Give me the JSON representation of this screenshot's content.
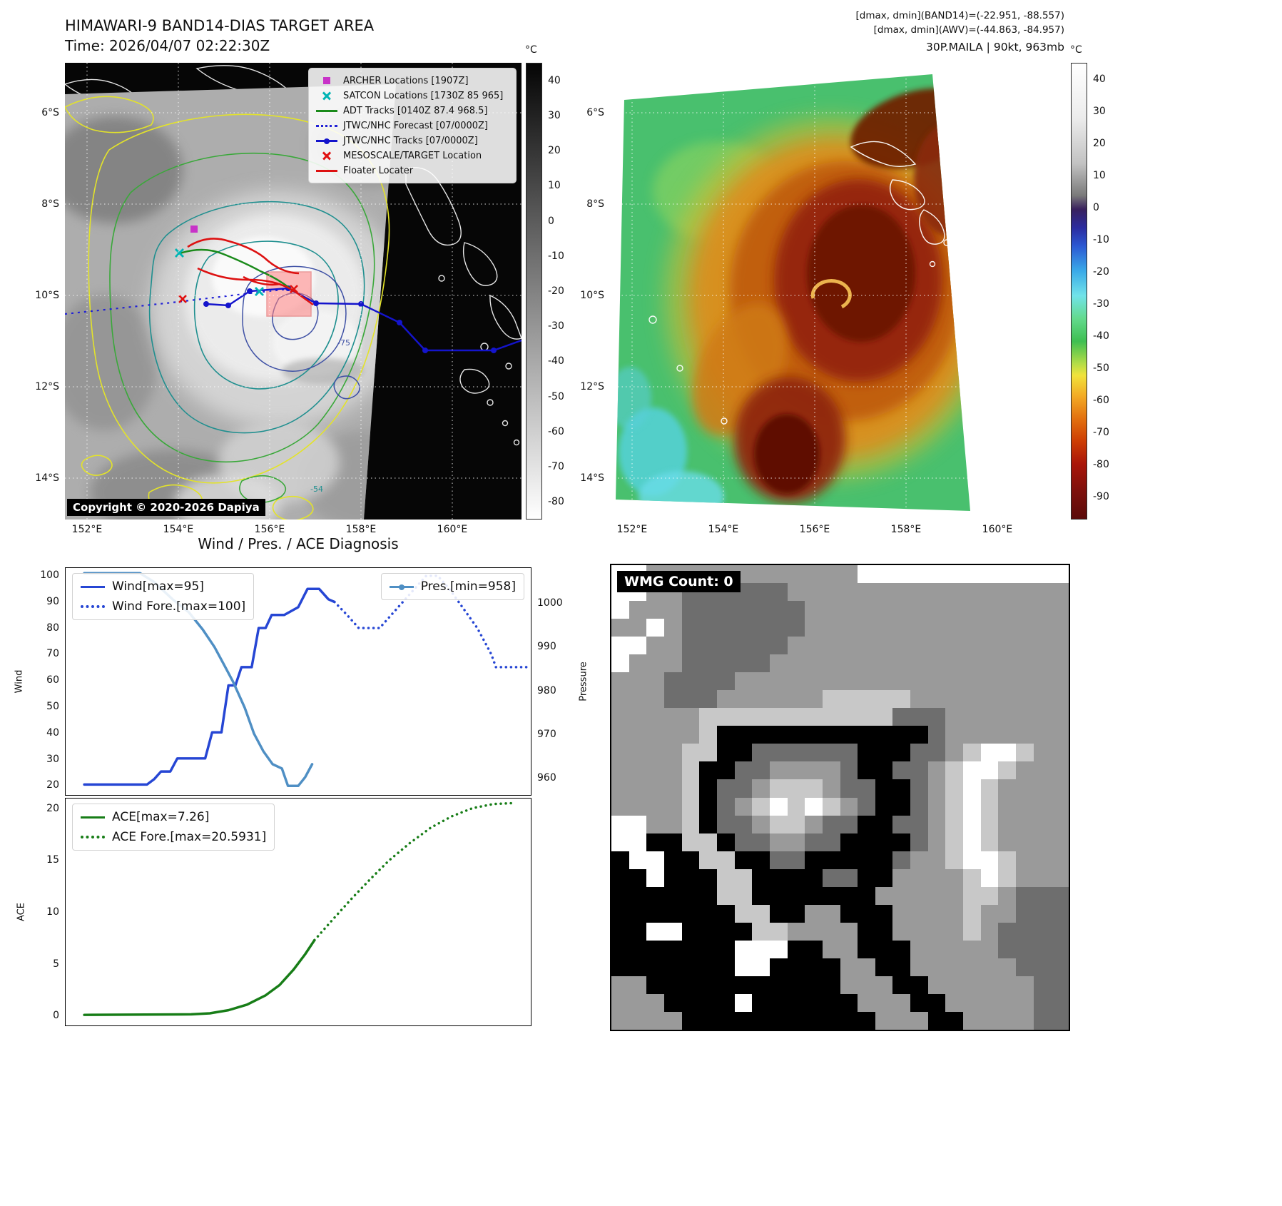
{
  "maps": {
    "band14": {
      "title": "HIMAWARI-9 BAND14-DIAS TARGET AREA",
      "subtitle": "Time: 2026/04/07 02:22:30Z",
      "x_ticks": [
        "152°E",
        "154°E",
        "156°E",
        "158°E",
        "160°E"
      ],
      "y_ticks": [
        "6°S",
        "8°S",
        "10°S",
        "12°S",
        "14°S"
      ],
      "colorbar": {
        "unit": "°C",
        "ticks": [
          40,
          30,
          20,
          10,
          0,
          -10,
          -20,
          -30,
          -40,
          -50,
          -60,
          -70,
          -80
        ]
      },
      "legend": [
        {
          "label": "ARCHER Locations [1907Z]",
          "marker": "magenta-square",
          "color": "#c832c8"
        },
        {
          "label": "SATCON Locations [1730Z 85 965]",
          "marker": "cyan-x",
          "color": "#00b4b4"
        },
        {
          "label": "ADT Tracks [0140Z 87.4 968.5]",
          "marker": "green-line",
          "color": "#1a8a1a"
        },
        {
          "label": "JTWC/NHC Forecast [07/0000Z]",
          "marker": "blue-dotted-line",
          "color": "#2121d6"
        },
        {
          "label": "JTWC/NHC Tracks [07/0000Z]",
          "marker": "blue-line-with-dot",
          "color": "#1414cc"
        },
        {
          "label": "MESOSCALE/TARGET Location",
          "marker": "red-x",
          "color": "#e01010"
        },
        {
          "label": "Floater Locater",
          "marker": "red-line",
          "color": "#dd1111"
        }
      ],
      "contour_labels": [
        "-75",
        "-54"
      ],
      "copyright": "Copyright © 2020-2026 Dapiya"
    },
    "awv": {
      "header_lines": [
        "[dmax, dmin](BAND14)=(-22.951, -88.557)",
        "[dmax, dmin](AWV)=(-44.863, -84.957)",
        "30P.MAILA | 90kt, 963mb"
      ],
      "x_ticks": [
        "152°E",
        "154°E",
        "156°E",
        "158°E",
        "160°E"
      ],
      "y_ticks": [
        "6°S",
        "8°S",
        "10°S",
        "12°S",
        "14°S"
      ],
      "colorbar": {
        "unit": "°C",
        "ticks": [
          40,
          30,
          20,
          10,
          0,
          -10,
          -20,
          -30,
          -40,
          -50,
          -60,
          -70,
          -80,
          -90
        ]
      }
    }
  },
  "chart_data": {
    "type": "line",
    "title": "Wind / Pres. / ACE Diagnosis",
    "xlim": [
      0,
      1
    ],
    "panels": [
      {
        "id": "wind_pressure",
        "ylabel_left": "Wind",
        "ylabel_right": "Pressure",
        "yticks_left": [
          100,
          90,
          80,
          70,
          60,
          50,
          40,
          30,
          20
        ],
        "yticks_right": [
          1000,
          990,
          980,
          970,
          960
        ],
        "ylim_left": [
          16,
          103
        ],
        "ylim_right": [
          955.9,
          1008.2
        ],
        "series": [
          {
            "id": "wind",
            "name": "Wind[max=95]",
            "color": "#2646d4",
            "dash": "solid",
            "axis": "left",
            "width": 3.5,
            "points": [
              [
                0.04,
                20
              ],
              [
                0.175,
                20
              ],
              [
                0.19,
                22
              ],
              [
                0.205,
                25
              ],
              [
                0.225,
                25
              ],
              [
                0.24,
                30
              ],
              [
                0.3,
                30
              ],
              [
                0.315,
                40
              ],
              [
                0.335,
                40
              ],
              [
                0.35,
                58
              ],
              [
                0.365,
                58
              ],
              [
                0.378,
                65
              ],
              [
                0.4,
                65
              ],
              [
                0.415,
                80
              ],
              [
                0.43,
                80
              ],
              [
                0.443,
                85
              ],
              [
                0.47,
                85
              ],
              [
                0.5,
                88
              ],
              [
                0.52,
                95
              ],
              [
                0.545,
                95
              ],
              [
                0.565,
                91
              ],
              [
                0.578,
                90
              ]
            ]
          },
          {
            "id": "wind_forecast",
            "name": "Wind Fore.[max=100]",
            "color": "#2646d4",
            "dash": "dotted",
            "axis": "left",
            "width": 3.5,
            "points": [
              [
                0.578,
                90
              ],
              [
                0.605,
                85
              ],
              [
                0.63,
                80
              ],
              [
                0.675,
                80
              ],
              [
                0.71,
                87
              ],
              [
                0.745,
                94
              ],
              [
                0.775,
                100
              ],
              [
                0.8,
                100
              ],
              [
                0.825,
                95
              ],
              [
                0.845,
                90
              ],
              [
                0.865,
                85
              ],
              [
                0.885,
                80
              ],
              [
                0.9,
                75
              ],
              [
                0.915,
                70
              ],
              [
                0.925,
                65
              ],
              [
                0.995,
                65
              ]
            ]
          },
          {
            "id": "pressure",
            "name": "Pres.[min=958]",
            "color": "#4f8fc4",
            "dash": "solid",
            "axis": "right",
            "width": 3.5,
            "points": [
              [
                0.04,
                1007
              ],
              [
                0.16,
                1007
              ],
              [
                0.19,
                1005
              ],
              [
                0.23,
                1001
              ],
              [
                0.265,
                998
              ],
              [
                0.295,
                994
              ],
              [
                0.32,
                990
              ],
              [
                0.34,
                986
              ],
              [
                0.36,
                982
              ],
              [
                0.385,
                976
              ],
              [
                0.405,
                970
              ],
              [
                0.425,
                966
              ],
              [
                0.445,
                963
              ],
              [
                0.465,
                962
              ],
              [
                0.478,
                958
              ],
              [
                0.5,
                958
              ],
              [
                0.515,
                960
              ],
              [
                0.53,
                963
              ]
            ]
          }
        ]
      },
      {
        "id": "ace",
        "ylabel_left": "ACE",
        "yticks_left": [
          20,
          15,
          10,
          5,
          0
        ],
        "ylim_left": [
          -1.03,
          21.03
        ],
        "series": [
          {
            "id": "ace",
            "name": "ACE[max=7.26]",
            "color": "#177d17",
            "dash": "solid",
            "axis": "left",
            "width": 3.5,
            "points": [
              [
                0.04,
                0
              ],
              [
                0.27,
                0.05
              ],
              [
                0.31,
                0.15
              ],
              [
                0.35,
                0.45
              ],
              [
                0.39,
                1.0
              ],
              [
                0.43,
                1.9
              ],
              [
                0.46,
                2.9
              ],
              [
                0.49,
                4.4
              ],
              [
                0.515,
                5.9
              ],
              [
                0.535,
                7.26
              ]
            ]
          },
          {
            "id": "ace_forecast",
            "name": "ACE Fore.[max=20.5931]",
            "color": "#177d17",
            "dash": "dotted",
            "axis": "left",
            "width": 3.5,
            "points": [
              [
                0.535,
                7.26
              ],
              [
                0.575,
                9.3
              ],
              [
                0.615,
                11.3
              ],
              [
                0.655,
                13.2
              ],
              [
                0.695,
                15.0
              ],
              [
                0.74,
                16.7
              ],
              [
                0.785,
                18.2
              ],
              [
                0.83,
                19.3
              ],
              [
                0.875,
                20.1
              ],
              [
                0.92,
                20.5
              ],
              [
                0.965,
                20.59
              ]
            ]
          }
        ]
      }
    ]
  },
  "wmg": {
    "label": "WMG Count: 0",
    "palette": {
      "0": "#000000",
      "1": "#6e6e6e",
      "2": "#9a9a9a",
      "3": "#c8c8c8",
      "4": "#ffffff"
    },
    "grid": [
      "44222222222222444444444444",
      "44221111112222222222222222",
      "42221111111222222222222222",
      "22421111111222222222222222",
      "44221111112222222222222222",
      "42221111122222222222222222",
      "22211112222222222222222222",
      "22211122222233333222222222",
      "22222333333333331112222222",
      "22222300000000000012222222",
      "22223300111111000112344322",
      "22223001122221001123443222",
      "22223011233321100123432222",
      "22223012343432100123432222",
      "44223011233211001123432222",
      "44003301122110000123432222",
      "04400330011000001223443222",
      "00400033000011002222343222",
      "00000033000000022222332111",
      "00000003300220002222322111",
      "00440000332222002222321111",
      "00000004440022000222221111",
      "00000004400002200222222111",
      "22000000000002220022222211",
      "22200004000000222002222211",
      "22220000000000022200222211"
    ]
  }
}
